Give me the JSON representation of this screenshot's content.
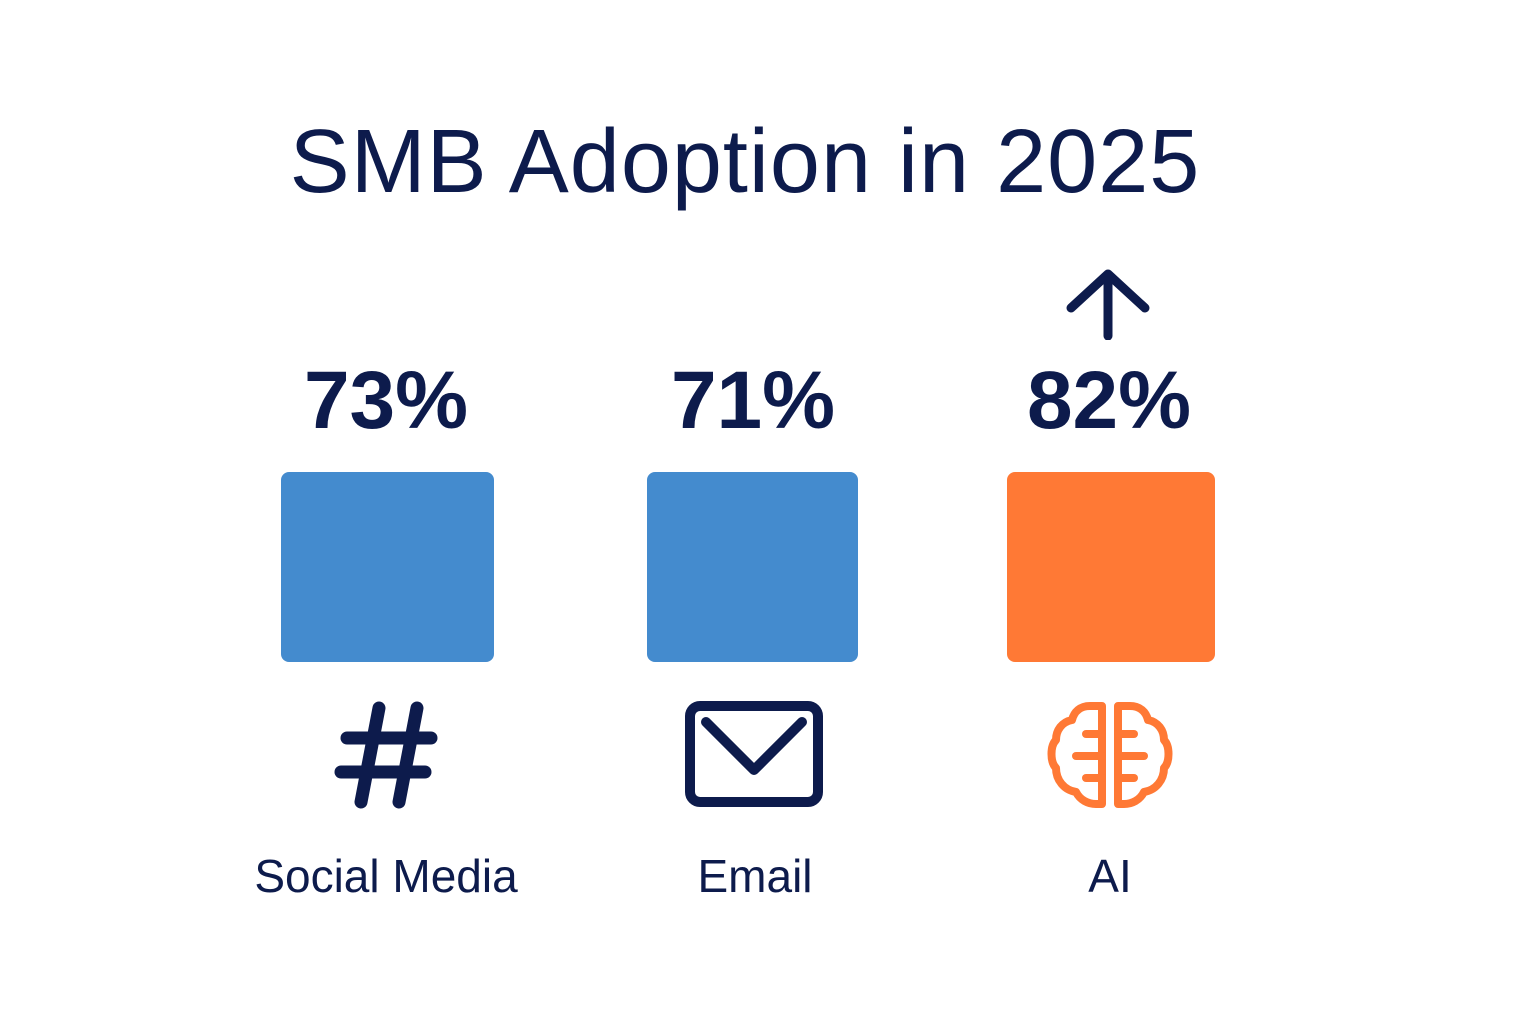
{
  "chart_data": {
    "type": "bar",
    "title": "SMB Adoption in 2025",
    "categories": [
      "Social Media",
      "Email",
      "AI"
    ],
    "value_labels": [
      "73%",
      "71%",
      "82%"
    ],
    "values": [
      73,
      71,
      82
    ],
    "icons": [
      "hashtag-icon",
      "envelope-icon",
      "brain-icon"
    ],
    "colors": [
      "#448bce",
      "#448bce",
      "#ff7935"
    ],
    "annotations": [
      "up-arrow-icon above AI"
    ]
  },
  "colors": {
    "text": "#0d1b4c",
    "blue": "#448bce",
    "orange": "#ff7935"
  }
}
